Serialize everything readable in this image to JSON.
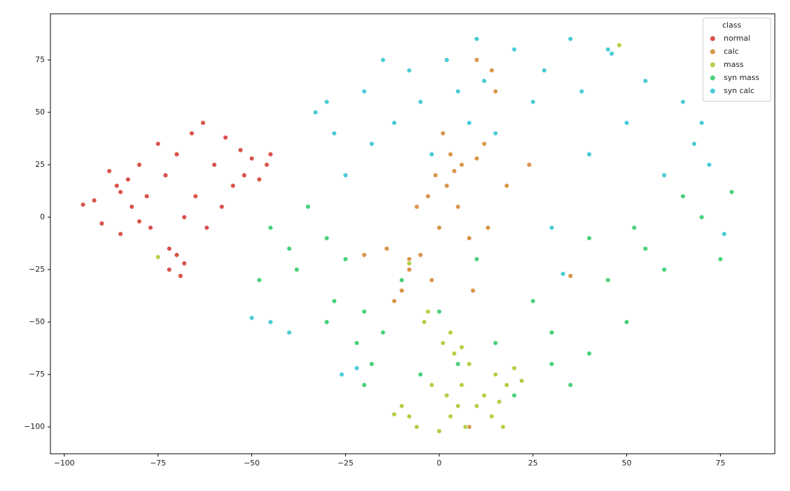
{
  "chart_data": {
    "type": "scatter",
    "xlim": [
      -103.7,
      89.5
    ],
    "ylim": [
      -112.8,
      97
    ],
    "xticks": [
      {
        "value": -100,
        "label": "−100"
      },
      {
        "value": -75,
        "label": "−75"
      },
      {
        "value": -50,
        "label": "−50"
      },
      {
        "value": -25,
        "label": "−25"
      },
      0,
      25,
      50,
      75
    ],
    "yticks": [
      {
        "value": -100,
        "label": "−100"
      },
      {
        "value": -75,
        "label": "−75"
      },
      {
        "value": -50,
        "label": "−50"
      },
      {
        "value": -25,
        "label": "−25"
      },
      0,
      25,
      50,
      75
    ],
    "grid": false,
    "legend_title": "class",
    "legend_position": "upper-right",
    "series": [
      {
        "name": "normal",
        "color": "#d9534c",
        "x": [
          -95,
          -92,
          -90,
          -88,
          -86,
          -85,
          -83,
          -82,
          -80,
          -78,
          -77,
          -75,
          -73,
          -72,
          -70,
          -69,
          -68,
          -66,
          -65,
          -63,
          -62,
          -60,
          -58,
          -57,
          -55,
          -53,
          -52,
          -50,
          -48,
          -46,
          -45,
          -72,
          -70,
          -68,
          -85,
          -80
        ],
        "y": [
          6,
          8,
          -3,
          22,
          15,
          -8,
          18,
          5,
          25,
          10,
          -5,
          35,
          20,
          -15,
          30,
          -28,
          -22,
          40,
          10,
          45,
          -5,
          25,
          5,
          38,
          15,
          32,
          20,
          28,
          18,
          25,
          30,
          -25,
          -18,
          0,
          12,
          -2
        ]
      },
      {
        "name": "calc",
        "color": "#d9964a",
        "x": [
          -14,
          -10,
          -8,
          -5,
          -3,
          -1,
          0,
          2,
          3,
          5,
          6,
          8,
          10,
          12,
          14,
          15,
          18,
          -12,
          -8,
          -6,
          -2,
          1,
          4,
          9,
          13,
          24,
          8,
          10,
          -20,
          35
        ],
        "y": [
          -15,
          -35,
          -20,
          -18,
          10,
          20,
          -5,
          15,
          30,
          5,
          25,
          -10,
          28,
          35,
          70,
          60,
          15,
          -40,
          -25,
          5,
          -30,
          40,
          22,
          -35,
          -5,
          25,
          -100,
          75,
          -18,
          -28
        ]
      },
      {
        "name": "mass",
        "color": "#b5cf48",
        "x": [
          -10,
          -8,
          -6,
          -4,
          -2,
          0,
          1,
          2,
          3,
          4,
          5,
          6,
          7,
          8,
          10,
          12,
          14,
          15,
          16,
          18,
          20,
          22,
          -12,
          -3,
          3,
          6,
          17,
          -75,
          48,
          -8
        ],
        "y": [
          -90,
          -95,
          -100,
          -50,
          -80,
          -102,
          -60,
          -85,
          -95,
          -65,
          -90,
          -80,
          -100,
          -70,
          -90,
          -85,
          -95,
          -75,
          -88,
          -80,
          -72,
          -78,
          -94,
          -45,
          -55,
          -62,
          -100,
          -19,
          82,
          -22
        ]
      },
      {
        "name": "syn mass",
        "color": "#49d17a",
        "x": [
          -48,
          -45,
          -40,
          -38,
          -35,
          -30,
          -28,
          -25,
          -22,
          -20,
          -18,
          -15,
          -10,
          -5,
          0,
          5,
          10,
          15,
          20,
          25,
          30,
          35,
          40,
          45,
          50,
          55,
          60,
          65,
          70,
          75,
          78,
          -30,
          -20,
          30,
          40,
          52
        ],
        "y": [
          -30,
          -5,
          -15,
          -25,
          5,
          -10,
          -40,
          -20,
          -60,
          -45,
          -70,
          -55,
          -30,
          -75,
          -45,
          -70,
          -20,
          -60,
          -85,
          -40,
          -55,
          -80,
          -65,
          -30,
          -50,
          -15,
          -25,
          10,
          0,
          -20,
          12,
          -50,
          -80,
          -70,
          -10,
          -5
        ]
      },
      {
        "name": "syn calc",
        "color": "#4ccbd6",
        "x": [
          -50,
          -45,
          -40,
          -33,
          -30,
          -28,
          -25,
          -20,
          -18,
          -15,
          -12,
          -8,
          -5,
          -2,
          2,
          5,
          8,
          12,
          15,
          20,
          25,
          28,
          30,
          35,
          38,
          40,
          45,
          50,
          55,
          60,
          65,
          68,
          70,
          72,
          76,
          -26,
          -22,
          33,
          46,
          10
        ],
        "y": [
          -48,
          -50,
          -55,
          50,
          55,
          40,
          20,
          60,
          35,
          75,
          45,
          70,
          55,
          30,
          75,
          60,
          45,
          65,
          40,
          80,
          55,
          70,
          -5,
          85,
          60,
          30,
          80,
          45,
          65,
          20,
          55,
          35,
          45,
          25,
          -8,
          -75,
          -72,
          -27,
          78,
          85
        ]
      }
    ]
  }
}
